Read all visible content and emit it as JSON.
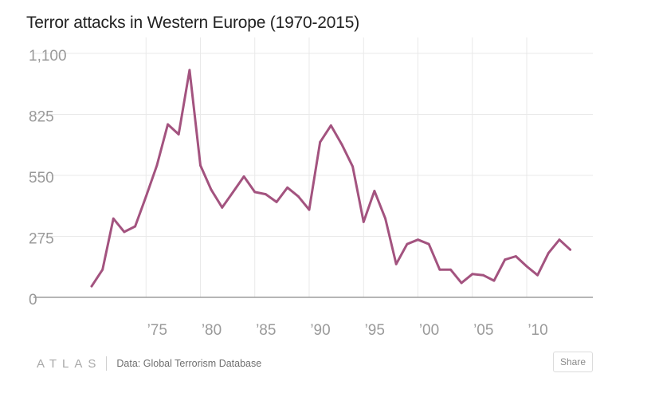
{
  "chart_data": {
    "type": "line",
    "title": "Terror attacks in Western Europe (1970-2015)",
    "xlabel": "",
    "ylabel": "",
    "xlim": [
      1968,
      2015
    ],
    "ylim": [
      0,
      1100
    ],
    "y_ticks": [
      0,
      275,
      550,
      825,
      1100
    ],
    "y_tick_labels": [
      "0",
      "275",
      "550",
      "825",
      "1,100"
    ],
    "x_ticks": [
      1975,
      1980,
      1985,
      1990,
      1995,
      2000,
      2005,
      2010
    ],
    "x_tick_labels": [
      "’75",
      "’80",
      "’85",
      "’90",
      "’95",
      "’00",
      "’05",
      "’10"
    ],
    "grid": true,
    "series": [
      {
        "name": "Terror attacks",
        "color": "#a3537f",
        "x": [
          1970,
          1971,
          1972,
          1973,
          1974,
          1975,
          1976,
          1977,
          1978,
          1979,
          1980,
          1981,
          1982,
          1983,
          1984,
          1985,
          1986,
          1987,
          1988,
          1989,
          1990,
          1991,
          1992,
          1993,
          1994,
          1995,
          1996,
          1997,
          1998,
          1999,
          2000,
          2001,
          2002,
          2003,
          2004,
          2005,
          2006,
          2007,
          2008,
          2009,
          2010,
          2011,
          2012,
          2013,
          2014
        ],
        "y": [
          50,
          125,
          355,
          295,
          320,
          455,
          595,
          780,
          735,
          1025,
          595,
          485,
          405,
          475,
          545,
          475,
          465,
          430,
          495,
          455,
          395,
          700,
          775,
          690,
          590,
          340,
          480,
          355,
          150,
          240,
          260,
          240,
          125,
          125,
          65,
          105,
          100,
          75,
          170,
          185,
          140,
          100,
          200,
          260,
          215
        ]
      }
    ]
  },
  "footer": {
    "brand": "ATLAS",
    "source": "Data: Global Terrorism Database",
    "share_label": "Share"
  }
}
